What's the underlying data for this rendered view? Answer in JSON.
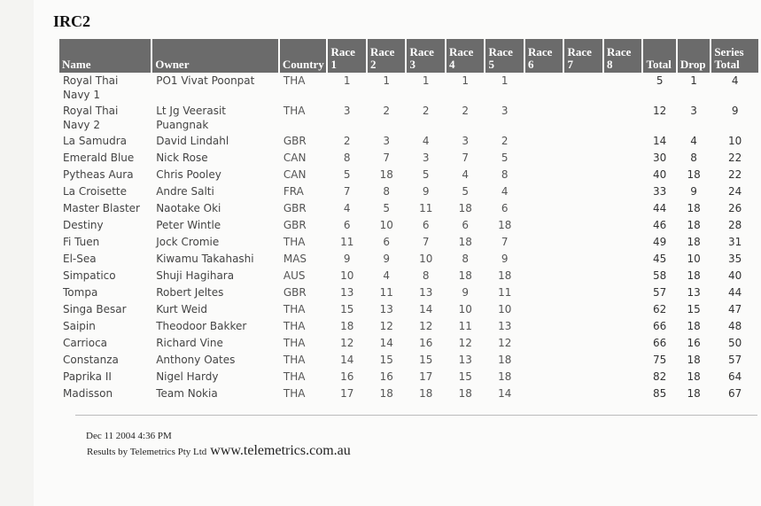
{
  "title": "IRC2",
  "table": {
    "headers": [
      "Name",
      "Owner",
      "Country",
      "Race 1",
      "Race 2",
      "Race 3",
      "Race 4",
      "Race 5",
      "Race 6",
      "Race 7",
      "Race 8",
      "Total",
      "Drop",
      "Series Total"
    ],
    "rows": [
      {
        "name": "Royal Thai Navy 1",
        "owner": "PO1 Vivat Poonpat",
        "country": "THA",
        "races": [
          1,
          1,
          1,
          1,
          1
        ],
        "total": 5,
        "drop": 1,
        "series_total": 4
      },
      {
        "name": "Royal Thai Navy 2",
        "owner": "Lt Jg Veerasit Puangnak",
        "country": "THA",
        "races": [
          3,
          2,
          2,
          2,
          3
        ],
        "total": 12,
        "drop": 3,
        "series_total": 9
      },
      {
        "name": "La Samudra",
        "owner": "David Lindahl",
        "country": "GBR",
        "races": [
          2,
          3,
          4,
          3,
          2
        ],
        "total": 14,
        "drop": 4,
        "series_total": 10
      },
      {
        "name": "Emerald Blue",
        "owner": "Nick Rose",
        "country": "CAN",
        "races": [
          8,
          7,
          3,
          7,
          5
        ],
        "total": 30,
        "drop": 8,
        "series_total": 22
      },
      {
        "name": "Pytheas Aura",
        "owner": "Chris Pooley",
        "country": "CAN",
        "races": [
          5,
          18,
          5,
          4,
          8
        ],
        "total": 40,
        "drop": 18,
        "series_total": 22
      },
      {
        "name": "La Croisette",
        "owner": "Andre Salti",
        "country": "FRA",
        "races": [
          7,
          8,
          9,
          5,
          4
        ],
        "total": 33,
        "drop": 9,
        "series_total": 24
      },
      {
        "name": "Master Blaster",
        "owner": "Naotake Oki",
        "country": "GBR",
        "races": [
          4,
          5,
          11,
          18,
          6
        ],
        "total": 44,
        "drop": 18,
        "series_total": 26
      },
      {
        "name": "Destiny",
        "owner": "Peter Wintle",
        "country": "GBR",
        "races": [
          6,
          10,
          6,
          6,
          18
        ],
        "total": 46,
        "drop": 18,
        "series_total": 28
      },
      {
        "name": "Fi Tuen",
        "owner": "Jock Cromie",
        "country": "THA",
        "races": [
          11,
          6,
          7,
          18,
          7
        ],
        "total": 49,
        "drop": 18,
        "series_total": 31
      },
      {
        "name": "El-Sea",
        "owner": "Kiwamu Takahashi",
        "country": "MAS",
        "races": [
          9,
          9,
          10,
          8,
          9
        ],
        "total": 45,
        "drop": 10,
        "series_total": 35
      },
      {
        "name": "Simpatico",
        "owner": "Shuji Hagihara",
        "country": "AUS",
        "races": [
          10,
          4,
          8,
          18,
          18
        ],
        "total": 58,
        "drop": 18,
        "series_total": 40
      },
      {
        "name": "Tompa",
        "owner": "Robert Jeltes",
        "country": "GBR",
        "races": [
          13,
          11,
          13,
          9,
          11
        ],
        "total": 57,
        "drop": 13,
        "series_total": 44
      },
      {
        "name": "Singa Besar",
        "owner": "Kurt Weid",
        "country": "THA",
        "races": [
          15,
          13,
          14,
          10,
          10
        ],
        "total": 62,
        "drop": 15,
        "series_total": 47
      },
      {
        "name": "Saipin",
        "owner": "Theodoor Bakker",
        "country": "THA",
        "races": [
          18,
          12,
          12,
          11,
          13
        ],
        "total": 66,
        "drop": 18,
        "series_total": 48
      },
      {
        "name": "Carrioca",
        "owner": "Richard Vine",
        "country": "THA",
        "races": [
          12,
          14,
          16,
          12,
          12
        ],
        "total": 66,
        "drop": 16,
        "series_total": 50
      },
      {
        "name": "Constanza",
        "owner": "Anthony Oates",
        "country": "THA",
        "races": [
          14,
          15,
          15,
          13,
          18
        ],
        "total": 75,
        "drop": 18,
        "series_total": 57
      },
      {
        "name": "Paprika II",
        "owner": "Nigel Hardy",
        "country": "THA",
        "races": [
          16,
          16,
          17,
          15,
          18
        ],
        "total": 82,
        "drop": 18,
        "series_total": 64
      },
      {
        "name": "Madisson",
        "owner": "Team Nokia",
        "country": "THA",
        "races": [
          17,
          18,
          18,
          18,
          14
        ],
        "total": 85,
        "drop": 18,
        "series_total": 67
      }
    ]
  },
  "footer": {
    "date": "Dec 11 2004 4:36 PM",
    "credit": "Results by Telemetrics Pty Ltd",
    "url": "www.telemetrics.com.au"
  }
}
